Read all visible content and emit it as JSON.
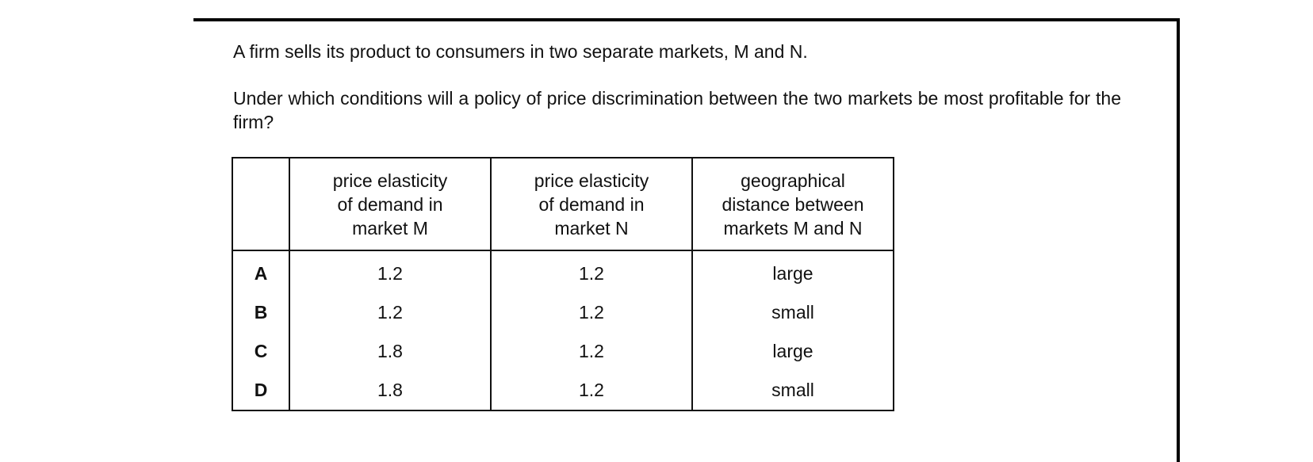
{
  "question": {
    "intro": "A firm sells its product to consumers in two separate markets, M and N.",
    "prompt": "Under which conditions will a policy of price discrimination between the two markets be most profitable for the firm?"
  },
  "table": {
    "headers": {
      "key": "",
      "col_m": [
        "price elasticity",
        "of demand in",
        "market M"
      ],
      "col_n": [
        "price elasticity",
        "of demand in",
        "market N"
      ],
      "col_geo": [
        "geographical",
        "distance between",
        "markets M and N"
      ]
    },
    "rows": [
      {
        "key": "A",
        "m": "1.2",
        "n": "1.2",
        "geo": "large"
      },
      {
        "key": "B",
        "m": "1.2",
        "n": "1.2",
        "geo": "small"
      },
      {
        "key": "C",
        "m": "1.8",
        "n": "1.2",
        "geo": "large"
      },
      {
        "key": "D",
        "m": "1.8",
        "n": "1.2",
        "geo": "small"
      }
    ]
  }
}
